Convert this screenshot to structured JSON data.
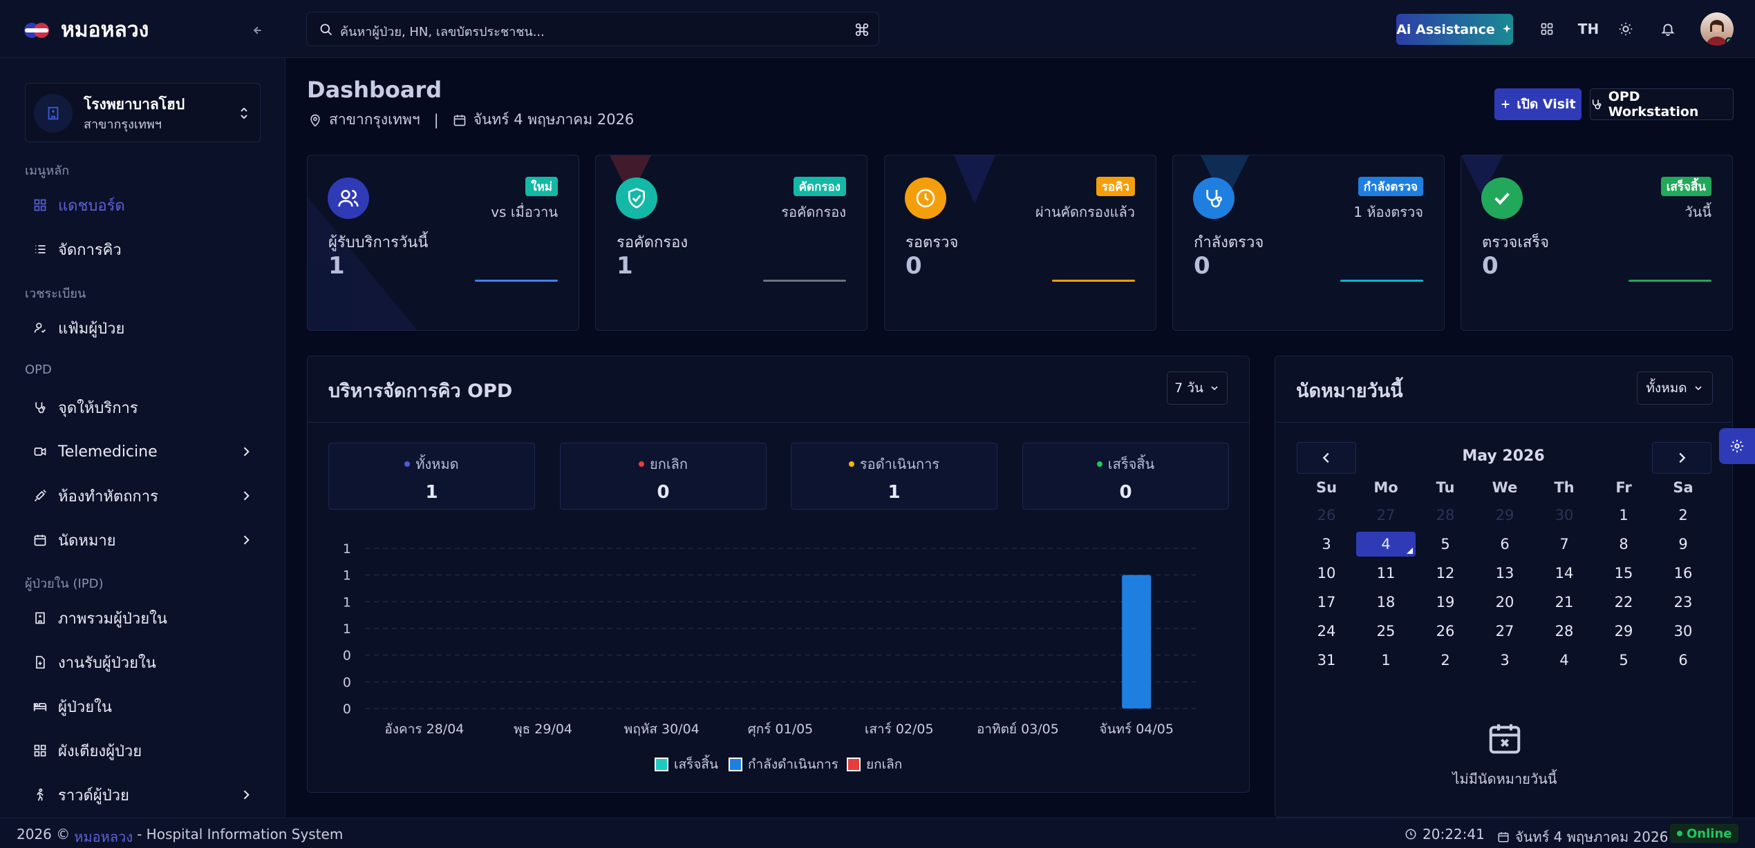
{
  "app": {
    "name": "หมอหลวง"
  },
  "search": {
    "placeholder": "ค้นหาผู้ป่วย, HN, เลขบัตรประชาชน..."
  },
  "topbar": {
    "ai_label": "Ai Assistance",
    "lang": "TH"
  },
  "org": {
    "name": "โรงพยาบาลโฮป",
    "branch": "สาขากรุงเทพฯ"
  },
  "sidebar": {
    "groups": [
      "เมนูหลัก",
      "เวชระเบียน",
      "OPD",
      "ผู้ป่วยใน (IPD)"
    ],
    "items": [
      {
        "label": "แดชบอร์ด"
      },
      {
        "label": "จัดการคิว"
      },
      {
        "label": "แฟ้มผู้ป่วย"
      },
      {
        "label": "จุดให้บริการ"
      },
      {
        "label": "Telemedicine"
      },
      {
        "label": "ห้องทำหัตถการ"
      },
      {
        "label": "นัดหมาย"
      },
      {
        "label": "ภาพรวมผู้ป่วยใน"
      },
      {
        "label": "งานรับผู้ป่วยใน"
      },
      {
        "label": "ผู้ป่วยใน"
      },
      {
        "label": "ผังเตียงผู้ป่วย"
      },
      {
        "label": "ราวด์ผู้ป่วย"
      }
    ]
  },
  "header": {
    "title": "Dashboard",
    "branch": "สาขากรุงเทพฯ",
    "separator": "|",
    "date": "จันทร์ 4 พฤษภาคม 2026",
    "visit_btn": "เปิด Visit",
    "opd_btn": "OPD Workstation"
  },
  "cards": [
    {
      "badge": "ใหม่",
      "sub": "vs เมื่อวาน",
      "label": "ผู้รับบริการวันนี้",
      "value": "1"
    },
    {
      "badge": "คัดกรอง",
      "sub": "รอคัดกรอง",
      "label": "รอคัดกรอง",
      "value": "1"
    },
    {
      "badge": "รอคิว",
      "sub": "ผ่านคัดกรองแล้ว",
      "label": "รอตรวจ",
      "value": "0"
    },
    {
      "badge": "กำลังตรวจ",
      "sub": "1 ห้องตรวจ",
      "label": "กำลังตรวจ",
      "value": "0"
    },
    {
      "badge": "เสร็จสิ้น",
      "sub": "วันนี้",
      "label": "ตรวจเสร็จ",
      "value": "0"
    }
  ],
  "queue": {
    "title": "บริหารจัดการคิว OPD",
    "range": "7 วัน",
    "stats": [
      {
        "label": "ทั้งหมด",
        "value": "1"
      },
      {
        "label": "ยกเลิก",
        "value": "0"
      },
      {
        "label": "รอดำเนินการ",
        "value": "1"
      },
      {
        "label": "เสร็จสิ้น",
        "value": "0"
      }
    ]
  },
  "chart_data": {
    "type": "bar",
    "categories": [
      "อังคาร 28/04",
      "พุธ 29/04",
      "พฤหัส 30/04",
      "ศุกร์ 01/05",
      "เสาร์ 02/05",
      "อาทิตย์ 03/05",
      "จันทร์ 04/05"
    ],
    "series": [
      {
        "name": "เสร็จสิ้น",
        "color": "#1ec9c0",
        "values": [
          0,
          0,
          0,
          0,
          0,
          0,
          0
        ]
      },
      {
        "name": "กำลังดำเนินการ",
        "color": "#1e7fe0",
        "values": [
          0,
          0,
          0,
          0,
          0,
          0,
          1
        ]
      },
      {
        "name": "ยกเลิก",
        "color": "#e83c3c",
        "values": [
          0,
          0,
          0,
          0,
          0,
          0,
          0
        ]
      }
    ],
    "ytick_labels": [
      "1",
      "1",
      "1",
      "1",
      "0",
      "0",
      "0"
    ],
    "ylim": [
      0,
      1
    ],
    "grid": true,
    "legend": "bottom"
  },
  "appointments": {
    "title": "นัดหมายวันนี้",
    "filter": "ทั้งหมด",
    "month": "May 2026",
    "weekdays": [
      "Su",
      "Mo",
      "Tu",
      "We",
      "Th",
      "Fr",
      "Sa"
    ],
    "weeks": [
      [
        "26",
        "27",
        "28",
        "29",
        "30",
        "1",
        "2"
      ],
      [
        "3",
        "4",
        "5",
        "6",
        "7",
        "8",
        "9"
      ],
      [
        "10",
        "11",
        "12",
        "13",
        "14",
        "15",
        "16"
      ],
      [
        "17",
        "18",
        "19",
        "20",
        "21",
        "22",
        "23"
      ],
      [
        "24",
        "25",
        "26",
        "27",
        "28",
        "29",
        "30"
      ],
      [
        "31",
        "1",
        "2",
        "3",
        "4",
        "5",
        "6"
      ]
    ],
    "selected": "4",
    "empty": "ไม่มีนัดหมายวันนี้"
  },
  "footer": {
    "year": "2026 ©",
    "brand": "หมอหลวง",
    "rest": "- Hospital Information System",
    "time": "20:22:41",
    "date": "จันทร์ 4 พฤษภาคม 2026",
    "status": "Online"
  },
  "colors": {
    "accent": "#2f3bb6",
    "online": "#22c55e"
  }
}
